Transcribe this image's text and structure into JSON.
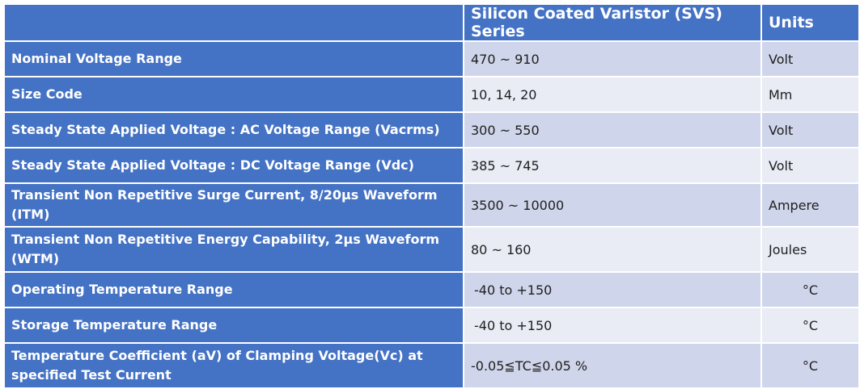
{
  "table": {
    "headers": {
      "parameter": "",
      "series": "Silicon Coated Varistor (SVS) Series",
      "units": "Units"
    },
    "rows": [
      {
        "parameter": "Nominal Voltage Range",
        "value": "470 ~ 910",
        "unit": "Volt"
      },
      {
        "parameter": "Size Code",
        "value": "10, 14, 20",
        "unit": "Mm"
      },
      {
        "parameter": "Steady State Applied Voltage : AC Voltage Range (Vacrms)",
        "value": "300 ~ 550",
        "unit": "Volt"
      },
      {
        "parameter": "Steady State Applied Voltage : DC Voltage Range (Vdc)",
        "value": "385 ~ 745",
        "unit": "Volt"
      },
      {
        "parameter": "Transient Non Repetitive Surge Current, 8/20μs Waveform (ITM)",
        "value": "3500 ~ 10000",
        "unit": "Ampere"
      },
      {
        "parameter": "Transient Non Repetitive Energy Capability, 2μs Waveform (WTM)",
        "value": "80 ~ 160",
        "unit": "Joules"
      },
      {
        "parameter": "Operating Temperature Range",
        "value": "-40 to +150",
        "unit": "°C"
      },
      {
        "parameter": "Storage Temperature Range",
        "value": "-40 to +150",
        "unit": "°C"
      },
      {
        "parameter": "Temperature Coefficient (aV) of Clamping Voltage(Vc) at specified Test Current",
        "value": "-0.05≦TC≦0.05 %",
        "unit": "°C"
      }
    ]
  },
  "colors": {
    "header_bg": "#4472c4",
    "row_odd_bg": "#cfd5ea",
    "row_even_bg": "#e9ebf5",
    "header_text": "#ffffff"
  }
}
